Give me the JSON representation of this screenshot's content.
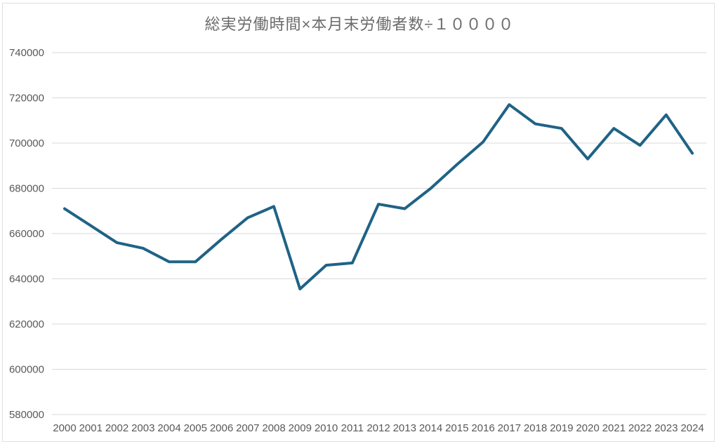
{
  "chart": {
    "title": "総実労働時間×本月末労働者数÷１００００"
  },
  "chart_data": {
    "type": "line",
    "title": "総実労働時間×本月末労働者数÷１００００",
    "x": [
      2000,
      2001,
      2002,
      2003,
      2004,
      2005,
      2006,
      2007,
      2008,
      2009,
      2010,
      2011,
      2012,
      2013,
      2014,
      2015,
      2016,
      2017,
      2018,
      2019,
      2020,
      2021,
      2022,
      2023,
      2024
    ],
    "series": [
      {
        "name": "総実労働時間×本月末労働者数÷１００００",
        "values": [
          671000,
          663500,
          656000,
          653500,
          647500,
          647500,
          657500,
          667000,
          672000,
          635500,
          646000,
          647000,
          673000,
          671000,
          680000,
          690500,
          700500,
          717000,
          708500,
          706500,
          693000,
          706500,
          699000,
          712500,
          695500
        ]
      }
    ],
    "xlabel": "",
    "ylabel": "",
    "ylim": [
      580000,
      740000
    ],
    "ytick_step": 20000,
    "ytick_labels": [
      "580000",
      "600000",
      "620000",
      "640000",
      "660000",
      "680000",
      "700000",
      "720000",
      "740000"
    ],
    "grid": "horizontal-only",
    "legend": "none",
    "colors": {
      "line": "#1f6386",
      "gridline": "#d9d9d9",
      "axis_label": "#595959",
      "title": "#6b6b6b",
      "frame_border": "#e0e0e0",
      "background": "#ffffff"
    }
  }
}
